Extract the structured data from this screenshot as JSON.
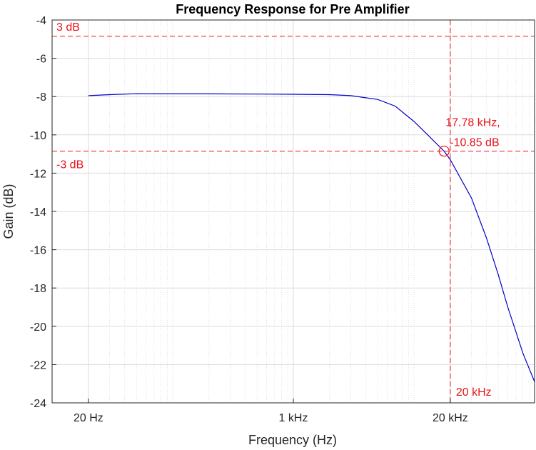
{
  "chart_data": {
    "type": "line",
    "title": "Frequency Response for Pre Amplifier",
    "xlabel": "Frequency (Hz)",
    "ylabel": "Gain (dB)",
    "x_scale": "log",
    "xlim": [
      10,
      100000
    ],
    "ylim": [
      -24,
      -4
    ],
    "grid": true,
    "x_ticks": [
      {
        "value": 20,
        "label": "20 Hz"
      },
      {
        "value": 1000,
        "label": "1 kHz"
      },
      {
        "value": 20000,
        "label": "20 kHz"
      }
    ],
    "y_ticks": [
      {
        "value": -4,
        "label": "-4"
      },
      {
        "value": -6,
        "label": "-6"
      },
      {
        "value": -8,
        "label": "-8"
      },
      {
        "value": -10,
        "label": "-10"
      },
      {
        "value": -12,
        "label": "-12"
      },
      {
        "value": -14,
        "label": "-14"
      },
      {
        "value": -16,
        "label": "-16"
      },
      {
        "value": -18,
        "label": "-18"
      },
      {
        "value": -20,
        "label": "-20"
      },
      {
        "value": -22,
        "label": "-22"
      },
      {
        "value": -24,
        "label": "-24"
      }
    ],
    "series": [
      {
        "color": "#0000cc",
        "x": [
          20,
          30,
          50,
          70,
          100,
          200,
          500,
          1000,
          2000,
          3000,
          5000,
          7000,
          10000,
          14000,
          17780,
          20000,
          30000,
          40000,
          50000,
          60000,
          80000,
          100000
        ],
        "y": [
          -7.95,
          -7.9,
          -7.85,
          -7.86,
          -7.86,
          -7.86,
          -7.87,
          -7.88,
          -7.9,
          -7.95,
          -8.15,
          -8.5,
          -9.3,
          -10.2,
          -10.85,
          -11.3,
          -13.3,
          -15.4,
          -17.3,
          -19.0,
          -21.4,
          -22.9
        ]
      }
    ],
    "reference_lines": [
      {
        "orientation": "horizontal",
        "value": -4.85,
        "label": "3 dB",
        "color": "#e8141b"
      },
      {
        "orientation": "horizontal",
        "value": -10.85,
        "label": "-3 dB",
        "color": "#e8141b"
      },
      {
        "orientation": "vertical",
        "value": 20000,
        "label": "20 kHz",
        "color": "#e8141b"
      }
    ],
    "marker": {
      "x": 17780,
      "y": -10.85,
      "label_line1": "17.78 kHz,",
      "label_line2": "-10.85 dB",
      "color": "#e8141b"
    }
  }
}
